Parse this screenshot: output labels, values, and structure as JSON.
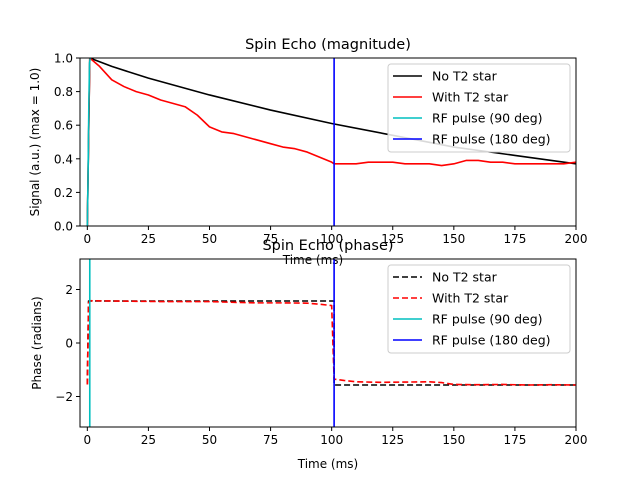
{
  "chart_data": [
    {
      "type": "line",
      "title": "Spin Echo (magnitude)",
      "xlabel": "Time (ms)",
      "ylabel": "Signal (a.u.) (max = 1.0)",
      "xlim": [
        -3,
        200
      ],
      "ylim": [
        0,
        1.0
      ],
      "xticks": [
        0,
        25,
        50,
        75,
        100,
        125,
        150,
        175,
        200
      ],
      "yticks": [
        0.0,
        0.2,
        0.4,
        0.6,
        0.8,
        1.0
      ],
      "xtick_labels": [
        "0",
        "25",
        "50",
        "75",
        "100",
        "125",
        "150",
        "175",
        "200"
      ],
      "ytick_labels": [
        "0.0",
        "0.2",
        "0.4",
        "0.6",
        "0.8",
        "1.0"
      ],
      "legend_position": "top-right",
      "grid": false,
      "series": [
        {
          "name": "No T2 star",
          "color": "#000000",
          "dash": "solid",
          "x": [
            0,
            1,
            10,
            25,
            50,
            75,
            100,
            125,
            150,
            175,
            200
          ],
          "y": [
            0.0,
            1.0,
            0.95,
            0.88,
            0.78,
            0.69,
            0.61,
            0.54,
            0.47,
            0.42,
            0.37
          ]
        },
        {
          "name": "With T2 star",
          "color": "#ff0000",
          "dash": "solid",
          "x": [
            0,
            1,
            5,
            10,
            15,
            20,
            25,
            30,
            35,
            40,
            45,
            50,
            55,
            60,
            65,
            70,
            75,
            80,
            85,
            90,
            95,
            100,
            101,
            105,
            110,
            115,
            120,
            125,
            130,
            135,
            140,
            145,
            150,
            155,
            160,
            165,
            170,
            175,
            180,
            185,
            190,
            195,
            200
          ],
          "y": [
            0.0,
            1.0,
            0.95,
            0.87,
            0.83,
            0.8,
            0.78,
            0.75,
            0.73,
            0.71,
            0.66,
            0.59,
            0.56,
            0.55,
            0.53,
            0.51,
            0.49,
            0.47,
            0.46,
            0.44,
            0.41,
            0.38,
            0.37,
            0.37,
            0.37,
            0.38,
            0.38,
            0.38,
            0.37,
            0.37,
            0.37,
            0.36,
            0.37,
            0.39,
            0.39,
            0.38,
            0.38,
            0.37,
            0.37,
            0.37,
            0.37,
            0.37,
            0.38
          ]
        },
        {
          "name": "RF pulse (90 deg)",
          "color": "#00bfbf",
          "dash": "solid",
          "x": [
            0,
            0.3,
            0.6,
            0.9,
            1.2
          ],
          "y": [
            0,
            0.3,
            0.7,
            0.97,
            1.0
          ]
        },
        {
          "name": "RF pulse (180 deg)",
          "color": "#0000ff",
          "dash": "solid",
          "x": [
            101,
            101
          ],
          "y": [
            0,
            1.0
          ]
        }
      ]
    },
    {
      "type": "line",
      "title": "Spin Echo (phase)",
      "xlabel": "Time (ms)",
      "ylabel": "Phase (radians)",
      "xlim": [
        -3,
        200
      ],
      "ylim": [
        -3.14,
        3.14
      ],
      "xticks": [
        0,
        25,
        50,
        75,
        100,
        125,
        150,
        175,
        200
      ],
      "yticks": [
        -2,
        0,
        2
      ],
      "xtick_labels": [
        "0",
        "25",
        "50",
        "75",
        "100",
        "125",
        "150",
        "175",
        "200"
      ],
      "ytick_labels": [
        "−2",
        "0",
        "2"
      ],
      "legend_position": "top-right",
      "grid": false,
      "series": [
        {
          "name": "No T2 star",
          "color": "#000000",
          "dash": "dashed",
          "x": [
            0,
            0.5,
            1,
            101,
            101,
            200
          ],
          "y": [
            -1.55,
            1.57,
            1.57,
            1.57,
            -1.57,
            -1.57
          ]
        },
        {
          "name": "With T2 star",
          "color": "#ff0000",
          "dash": "dashed",
          "x": [
            0,
            0.5,
            1,
            10,
            20,
            30,
            40,
            50,
            60,
            70,
            80,
            90,
            95,
            100,
            101,
            105,
            110,
            120,
            130,
            140,
            145,
            150,
            160,
            170,
            180,
            190,
            200
          ],
          "y": [
            -1.55,
            1.5,
            1.58,
            1.57,
            1.56,
            1.55,
            1.55,
            1.55,
            1.52,
            1.5,
            1.5,
            1.49,
            1.45,
            1.4,
            -1.35,
            -1.4,
            -1.45,
            -1.47,
            -1.46,
            -1.45,
            -1.48,
            -1.55,
            -1.56,
            -1.55,
            -1.57,
            -1.56,
            -1.57
          ]
        },
        {
          "name": "RF pulse (90 deg)",
          "color": "#00bfbf",
          "dash": "solid",
          "x": [
            1,
            1
          ],
          "y": [
            -3.14,
            3.14
          ]
        },
        {
          "name": "RF pulse (180 deg)",
          "color": "#0000ff",
          "dash": "solid",
          "x": [
            101,
            101
          ],
          "y": [
            -3.14,
            3.14
          ]
        }
      ]
    }
  ]
}
